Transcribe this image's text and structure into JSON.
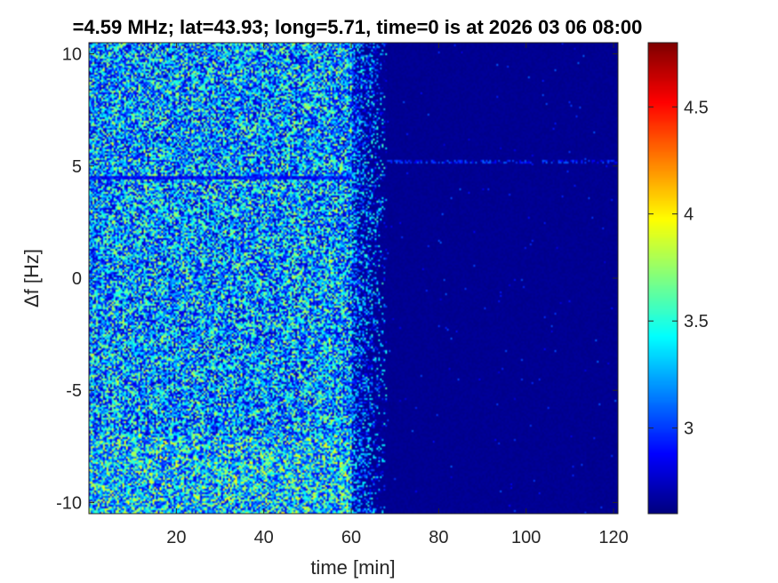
{
  "chart_data": {
    "type": "heatmap",
    "title": "=4.59 MHz;  lat=43.93; long=5.71, time=0 is at 2026 03 06 08:00",
    "xlabel": "time [min]",
    "ylabel": "Δf [Hz]",
    "xlim": [
      0,
      121
    ],
    "ylim": [
      -10.5,
      10.5
    ],
    "xticks": [
      20,
      40,
      60,
      80,
      100,
      120
    ],
    "xtick_labels": [
      "20",
      "40",
      "60",
      "80",
      "100",
      "120"
    ],
    "yticks": [
      -10,
      -5,
      0,
      5,
      10
    ],
    "ytick_labels": [
      "-10",
      "-5",
      "0",
      "5",
      "10"
    ],
    "colorbar": {
      "range": [
        2.6,
        4.8
      ],
      "ticks": [
        3,
        3.5,
        4,
        4.5
      ],
      "tick_labels": [
        "3",
        "3.5",
        "4",
        "4.5"
      ],
      "colormap": "jet"
    },
    "description_regions": [
      {
        "x_range": [
          0,
          60
        ],
        "level": "high-noise",
        "typical_value": 3.3
      },
      {
        "x_range": [
          60,
          68
        ],
        "level": "transition",
        "typical_value": 3.0
      },
      {
        "x_range": [
          68,
          121
        ],
        "level": "background",
        "typical_value": 2.65
      }
    ],
    "features": [
      {
        "type": "horizontal-line",
        "y": 5.2,
        "x_range": [
          68,
          121
        ],
        "value": 2.9
      },
      {
        "type": "horizontal-line",
        "y": 4.5,
        "x_range": [
          0,
          60
        ],
        "value": 2.7
      }
    ]
  }
}
